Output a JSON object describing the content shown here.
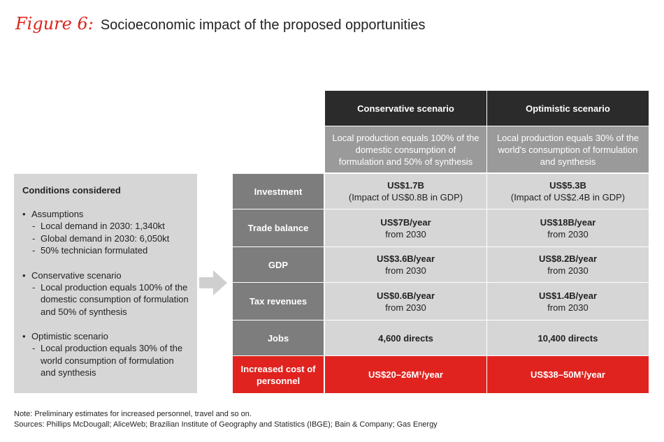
{
  "figure": {
    "label": "Figure 6:",
    "title": "Socioeconomic impact of the proposed opportunities"
  },
  "conditions": {
    "title": "Conditions considered",
    "groups": [
      {
        "heading": "Assumptions",
        "items": [
          "Local demand in 2030: 1,340kt",
          "Global demand in 2030: 6,050kt",
          "50% technician formulated"
        ]
      },
      {
        "heading": "Conservative scenario",
        "items": [
          "Local production equals 100% of the domestic consumption of formulation and 50% of synthesis"
        ]
      },
      {
        "heading": "Optimistic scenario",
        "items": [
          "Local production equals 30% of the world consumption of formulation and synthesis"
        ]
      }
    ]
  },
  "table": {
    "columns": [
      {
        "header": "Conservative scenario",
        "description": "Local production equals 100% of the domestic consumption of formulation and 50% of synthesis"
      },
      {
        "header": "Optimistic scenario",
        "description": "Local production equals 30% of the world's consumption of formulation and synthesis"
      }
    ],
    "rows": [
      {
        "label": "Investment",
        "cells": [
          {
            "value": "US$1.7B",
            "sub": "(Impact of US$0.8B in GDP)"
          },
          {
            "value": "US$5.3B",
            "sub": "(Impact of US$2.4B in GDP)"
          }
        ]
      },
      {
        "label": "Trade balance",
        "cells": [
          {
            "value": "US$7B/year",
            "sub": "from 2030"
          },
          {
            "value": "US$18B/year",
            "sub": "from 2030"
          }
        ]
      },
      {
        "label": "GDP",
        "cells": [
          {
            "value": "US$3.6B/year",
            "sub": "from 2030"
          },
          {
            "value": "US$8.2B/year",
            "sub": "from 2030"
          }
        ]
      },
      {
        "label": "Tax revenues",
        "cells": [
          {
            "value": "US$0.6B/year",
            "sub": "from 2030"
          },
          {
            "value": "US$1.4B/year",
            "sub": "from 2030"
          }
        ]
      },
      {
        "label": "Jobs",
        "cells": [
          {
            "value": "4,600 directs",
            "sub": ""
          },
          {
            "value": "10,400 directs",
            "sub": ""
          }
        ]
      },
      {
        "label": "Increased cost of personnel",
        "cells": [
          {
            "value": "US$20–26M¹/year",
            "sub": ""
          },
          {
            "value": "US$38–50M¹/year",
            "sub": ""
          }
        ]
      }
    ]
  },
  "notes": {
    "note": "Note: Preliminary estimates for increased personnel, travel and so on.",
    "sources": "Sources: Phillips McDougall; AliceWeb; Brazilian Institute of Geography and Statistics (IBGE); Bain & Company; Gas Energy"
  },
  "colors": {
    "accent": "#e0231f",
    "header_dark": "#2b2b2b",
    "header_mid": "#9a9a9a",
    "label_bg": "#7d7d7d",
    "cell_bg": "#d6d6d6"
  }
}
